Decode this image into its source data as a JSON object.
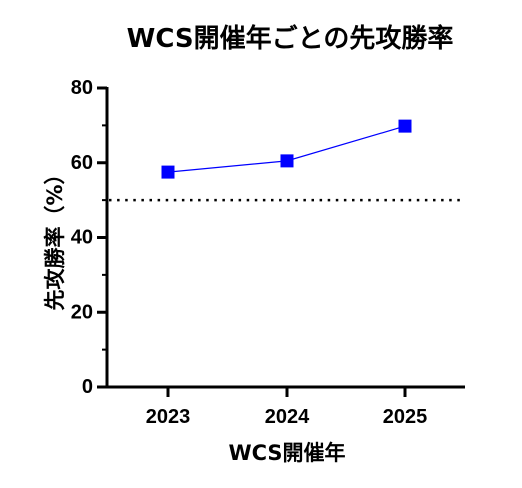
{
  "chart_data": {
    "type": "line",
    "title": "WCS開催年ごとの先攻勝率",
    "xlabel": "WCS開催年",
    "ylabel": "先攻勝率（%）",
    "categories": [
      "2023",
      "2024",
      "2025"
    ],
    "series": [
      {
        "values": [
          57.5,
          60.5,
          69.8
        ],
        "color": "#0000ff",
        "marker": "square"
      }
    ],
    "ylim": [
      0,
      80
    ],
    "yticks": [
      0,
      20,
      40,
      60,
      80
    ],
    "reference_line": {
      "y": 50,
      "style": "dotted"
    },
    "grid": false,
    "legend": "none"
  }
}
